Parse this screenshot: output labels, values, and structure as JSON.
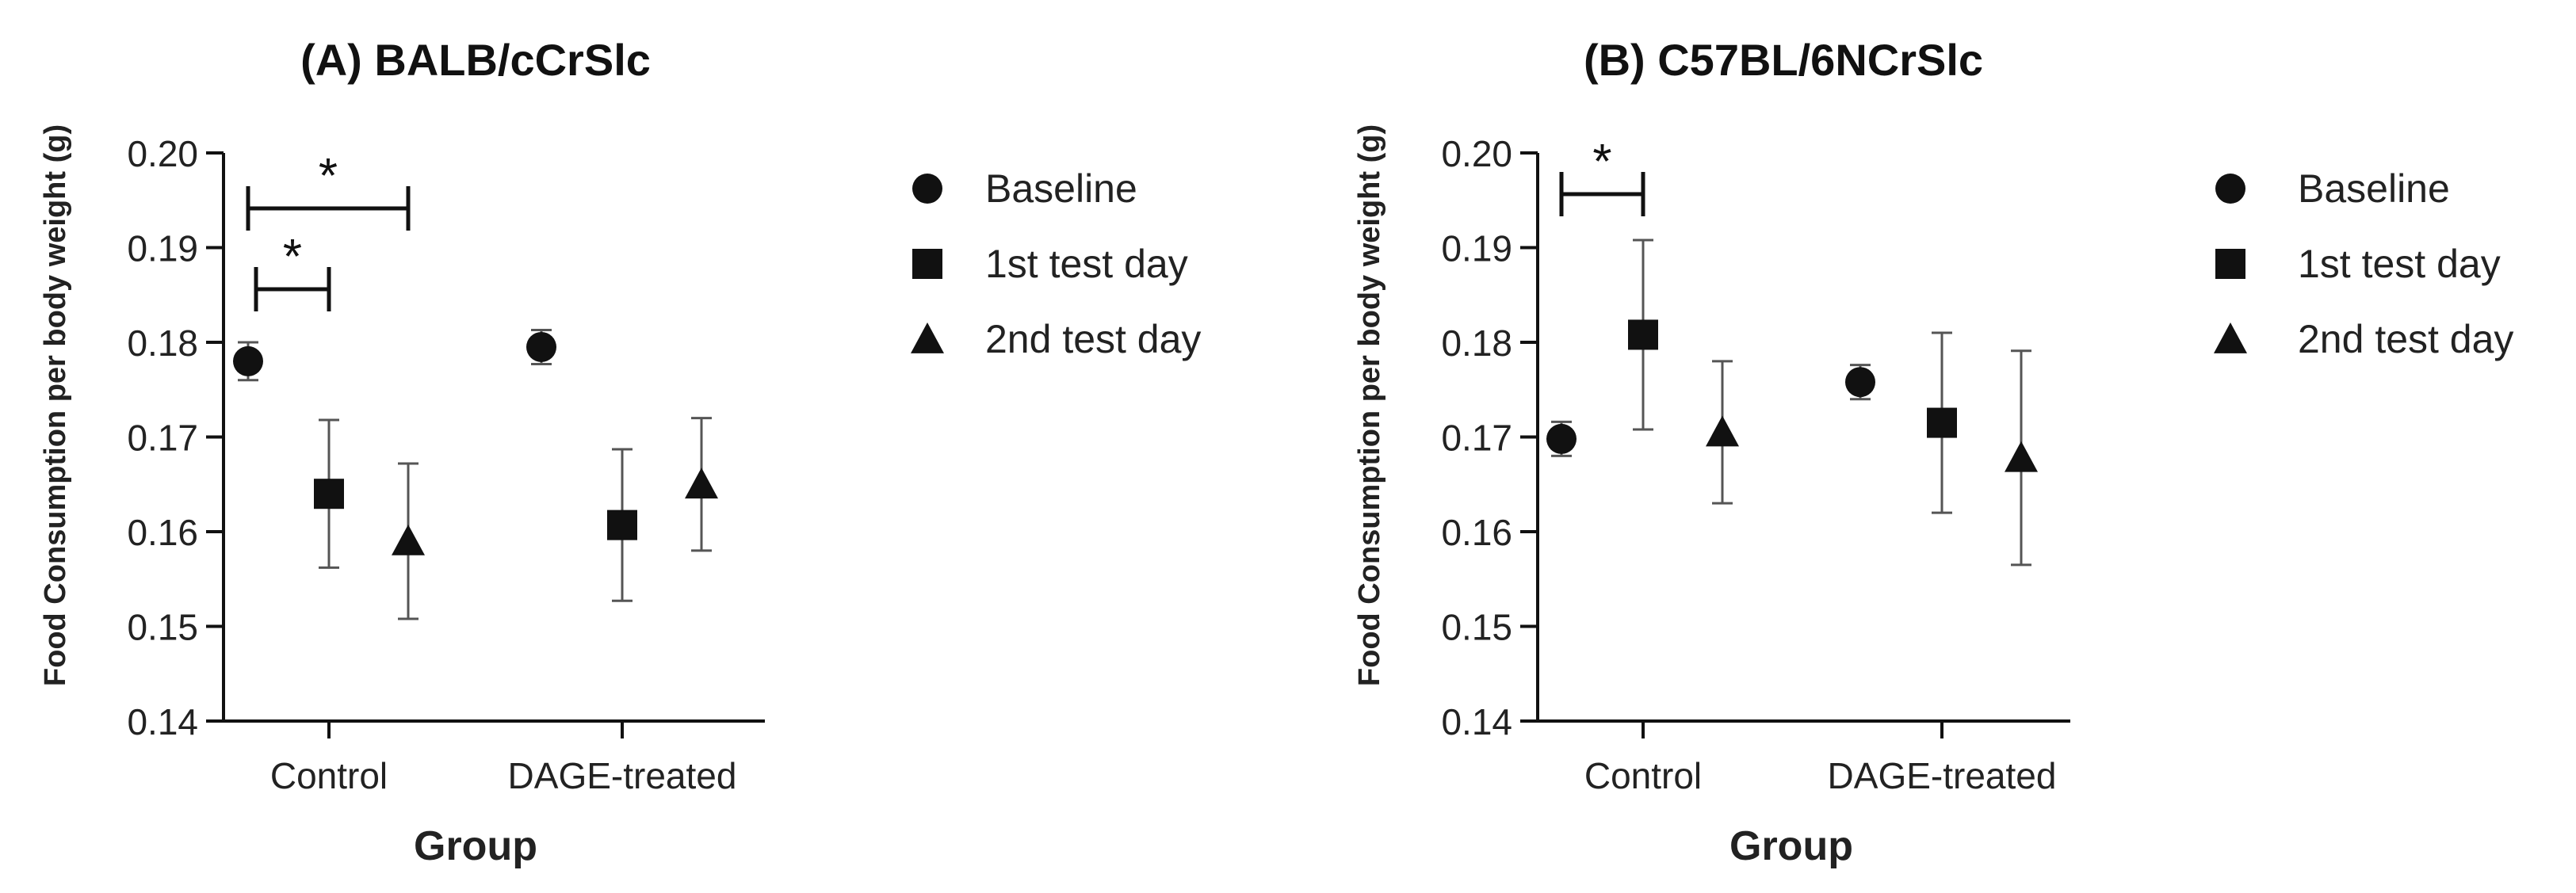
{
  "chart_data": [
    {
      "type": "scatter",
      "title": "(A) BALB/cCrSlc",
      "xlabel": "Group",
      "ylabel": "Food Consumption per body weight (g)",
      "categories": [
        "Control",
        "DAGE-treated"
      ],
      "ylim": [
        0.14,
        0.2
      ],
      "yticks": [
        "0.14",
        "0.15",
        "0.16",
        "0.17",
        "0.18",
        "0.19",
        "0.20"
      ],
      "series": [
        {
          "name": "Baseline",
          "marker": "circle",
          "values": [
            0.178,
            0.1795
          ],
          "errors": [
            0.002,
            0.0018
          ]
        },
        {
          "name": "1st test day",
          "marker": "square",
          "values": [
            0.164,
            0.1607
          ],
          "errors": [
            0.0078,
            0.008
          ]
        },
        {
          "name": "2nd test day",
          "marker": "triangle",
          "values": [
            0.159,
            0.165
          ],
          "errors": [
            0.0082,
            0.007
          ]
        }
      ],
      "significance": [
        {
          "category": "Control",
          "from": "Baseline",
          "to": "1st test day",
          "label": "*"
        },
        {
          "category": "Control",
          "from": "Baseline",
          "to": "2nd test day",
          "label": "*"
        }
      ],
      "legend": {
        "position": "right"
      }
    },
    {
      "type": "scatter",
      "title": "(B) C57BL/6NCrSlc",
      "xlabel": "Group",
      "ylabel": "Food Consumption per body weight (g)",
      "categories": [
        "Control",
        "DAGE-treated"
      ],
      "ylim": [
        0.14,
        0.2
      ],
      "yticks": [
        "0.14",
        "0.15",
        "0.16",
        "0.17",
        "0.18",
        "0.19",
        "0.20"
      ],
      "series": [
        {
          "name": "Baseline",
          "marker": "circle",
          "values": [
            0.1698,
            0.1758
          ],
          "errors": [
            0.0018,
            0.0018
          ]
        },
        {
          "name": "1st test day",
          "marker": "square",
          "values": [
            0.1808,
            0.1715
          ],
          "errors": [
            0.01,
            0.0095
          ]
        },
        {
          "name": "2nd test day",
          "marker": "triangle",
          "values": [
            0.1705,
            0.1678
          ],
          "errors": [
            0.0075,
            0.0113
          ]
        }
      ],
      "significance": [
        {
          "category": "Control",
          "from": "Baseline",
          "to": "1st test day",
          "label": "*"
        }
      ],
      "legend": {
        "position": "right"
      }
    }
  ]
}
